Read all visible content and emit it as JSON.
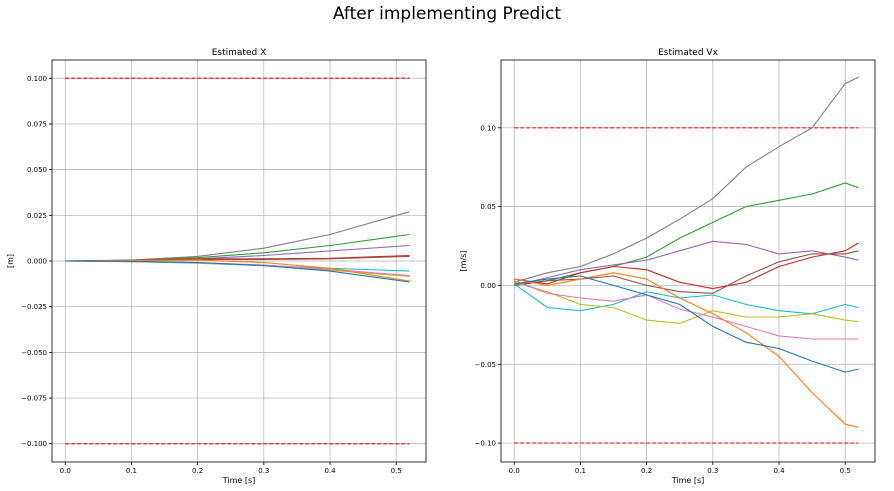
{
  "suptitle": "After implementing Predict",
  "chart_data": [
    {
      "type": "line",
      "title": "Estimated X",
      "xlabel": "Time [s]",
      "ylabel": "[m]",
      "xlim": [
        -0.02,
        0.545
      ],
      "ylim": [
        -0.11,
        0.11
      ],
      "xticks": [
        0.0,
        0.1,
        0.2,
        0.3,
        0.4,
        0.5
      ],
      "yticks": [
        -0.1,
        -0.075,
        -0.05,
        -0.025,
        0.0,
        0.025,
        0.05,
        0.075,
        0.1
      ],
      "xtick_labels": [
        "0.0",
        "0.1",
        "0.2",
        "0.3",
        "0.4",
        "0.5"
      ],
      "ytick_labels": [
        "−0.100",
        "−0.075",
        "−0.050",
        "−0.025",
        "0.000",
        "0.025",
        "0.050",
        "0.075",
        "0.100"
      ],
      "grid": true,
      "bounds": {
        "values": [
          0.1,
          -0.1
        ],
        "color": "#e41a1c",
        "style": "dashed",
        "x_range": [
          0.0,
          0.52
        ]
      },
      "series": [
        {
          "color": "#7f7f7f",
          "x": [
            0.0,
            0.1,
            0.2,
            0.3,
            0.4,
            0.52
          ],
          "y": [
            0.0,
            0.0005,
            0.0025,
            0.007,
            0.0145,
            0.027
          ]
        },
        {
          "color": "#2ca02c",
          "x": [
            0.0,
            0.1,
            0.2,
            0.3,
            0.4,
            0.52
          ],
          "y": [
            0.0,
            0.0004,
            0.0018,
            0.0045,
            0.0085,
            0.0145
          ]
        },
        {
          "color": "#9467bd",
          "x": [
            0.0,
            0.1,
            0.2,
            0.3,
            0.4,
            0.52
          ],
          "y": [
            0.0,
            0.0003,
            0.0012,
            0.003,
            0.0055,
            0.0085
          ]
        },
        {
          "color": "#d62728",
          "x": [
            0.0,
            0.1,
            0.2,
            0.3,
            0.4,
            0.52
          ],
          "y": [
            0.0,
            0.0004,
            0.0012,
            0.0012,
            0.0015,
            0.003
          ]
        },
        {
          "color": "#8c564b",
          "x": [
            0.0,
            0.1,
            0.2,
            0.3,
            0.4,
            0.52
          ],
          "y": [
            0.0,
            0.0002,
            0.0008,
            0.0008,
            0.0012,
            0.0025
          ]
        },
        {
          "color": "#17becf",
          "x": [
            0.0,
            0.1,
            0.2,
            0.3,
            0.4,
            0.52
          ],
          "y": [
            0.0,
            -0.0004,
            -0.0012,
            -0.0025,
            -0.004,
            -0.0055
          ]
        },
        {
          "color": "#bcbd22",
          "x": [
            0.0,
            0.1,
            0.2,
            0.3,
            0.4,
            0.52
          ],
          "y": [
            0.0,
            -0.0003,
            -0.001,
            -0.0025,
            -0.005,
            -0.0085
          ]
        },
        {
          "color": "#e377c2",
          "x": [
            0.0,
            0.1,
            0.2,
            0.3,
            0.4,
            0.52
          ],
          "y": [
            0.0,
            -0.0002,
            -0.0008,
            -0.0022,
            -0.0045,
            -0.008
          ]
        },
        {
          "color": "#ff7f0e",
          "x": [
            0.0,
            0.1,
            0.2,
            0.3,
            0.4,
            0.52
          ],
          "y": [
            0.0,
            0.0002,
            0.0005,
            -0.0008,
            -0.004,
            -0.011
          ]
        },
        {
          "color": "#1f77b4",
          "x": [
            0.0,
            0.1,
            0.2,
            0.3,
            0.4,
            0.52
          ],
          "y": [
            0.0,
            -0.0002,
            -0.0008,
            -0.0025,
            -0.0055,
            -0.0115
          ]
        }
      ]
    },
    {
      "type": "line",
      "title": "Estimated Vx",
      "xlabel": "Time [s]",
      "ylabel": "[m/s]",
      "xlim": [
        -0.02,
        0.545
      ],
      "ylim": [
        -0.112,
        0.143
      ],
      "xticks": [
        0.0,
        0.1,
        0.2,
        0.3,
        0.4,
        0.5
      ],
      "yticks": [
        -0.1,
        -0.05,
        0.0,
        0.05,
        0.1
      ],
      "xtick_labels": [
        "0.0",
        "0.1",
        "0.2",
        "0.3",
        "0.4",
        "0.5"
      ],
      "ytick_labels": [
        "−0.10",
        "−0.05",
        "0.00",
        "0.05",
        "0.10"
      ],
      "grid": true,
      "bounds": {
        "values": [
          0.1,
          -0.1
        ],
        "color": "#e41a1c",
        "style": "dashed",
        "x_range": [
          0.0,
          0.52
        ]
      },
      "series": [
        {
          "color": "#7f7f7f",
          "x": [
            0.0,
            0.05,
            0.1,
            0.15,
            0.2,
            0.25,
            0.3,
            0.35,
            0.4,
            0.45,
            0.5,
            0.52
          ],
          "y": [
            0.002,
            0.008,
            0.012,
            0.02,
            0.03,
            0.042,
            0.055,
            0.075,
            0.088,
            0.1,
            0.128,
            0.132
          ]
        },
        {
          "color": "#2ca02c",
          "x": [
            0.0,
            0.05,
            0.1,
            0.15,
            0.2,
            0.25,
            0.3,
            0.35,
            0.4,
            0.45,
            0.5,
            0.52
          ],
          "y": [
            0.0,
            0.003,
            0.008,
            0.012,
            0.018,
            0.03,
            0.04,
            0.05,
            0.054,
            0.058,
            0.065,
            0.062
          ]
        },
        {
          "color": "#9467bd",
          "x": [
            0.0,
            0.05,
            0.1,
            0.15,
            0.2,
            0.25,
            0.3,
            0.35,
            0.4,
            0.45,
            0.5,
            0.52
          ],
          "y": [
            0.0,
            0.005,
            0.01,
            0.013,
            0.016,
            0.022,
            0.028,
            0.026,
            0.02,
            0.022,
            0.018,
            0.016
          ]
        },
        {
          "color": "#d62728",
          "x": [
            0.0,
            0.05,
            0.1,
            0.15,
            0.2,
            0.25,
            0.3,
            0.35,
            0.4,
            0.45,
            0.5,
            0.52
          ],
          "y": [
            0.004,
            0.001,
            0.008,
            0.012,
            0.01,
            0.002,
            -0.002,
            0.002,
            0.012,
            0.018,
            0.022,
            0.027
          ]
        },
        {
          "color": "#8c564b",
          "x": [
            0.0,
            0.05,
            0.1,
            0.15,
            0.2,
            0.25,
            0.3,
            0.35,
            0.4,
            0.45,
            0.5,
            0.52
          ],
          "y": [
            0.0,
            0.003,
            0.004,
            0.006,
            0.0,
            -0.004,
            -0.005,
            0.006,
            0.015,
            0.02,
            0.02,
            0.022
          ]
        },
        {
          "color": "#17becf",
          "x": [
            0.0,
            0.05,
            0.1,
            0.15,
            0.2,
            0.25,
            0.3,
            0.35,
            0.4,
            0.45,
            0.5,
            0.52
          ],
          "y": [
            0.001,
            -0.014,
            -0.016,
            -0.012,
            -0.004,
            -0.008,
            -0.006,
            -0.012,
            -0.016,
            -0.018,
            -0.012,
            -0.014
          ]
        },
        {
          "color": "#bcbd22",
          "x": [
            0.0,
            0.05,
            0.1,
            0.15,
            0.2,
            0.25,
            0.3,
            0.35,
            0.4,
            0.45,
            0.5,
            0.52
          ],
          "y": [
            0.002,
            -0.004,
            -0.012,
            -0.014,
            -0.022,
            -0.024,
            -0.016,
            -0.02,
            -0.02,
            -0.018,
            -0.022,
            -0.023
          ]
        },
        {
          "color": "#e377c2",
          "x": [
            0.0,
            0.05,
            0.1,
            0.15,
            0.2,
            0.25,
            0.3,
            0.35,
            0.4,
            0.45,
            0.5,
            0.52
          ],
          "y": [
            0.003,
            -0.005,
            -0.008,
            -0.01,
            -0.006,
            -0.015,
            -0.02,
            -0.026,
            -0.032,
            -0.034,
            -0.034,
            -0.034
          ]
        },
        {
          "color": "#ff7f0e",
          "x": [
            0.0,
            0.05,
            0.1,
            0.15,
            0.2,
            0.25,
            0.3,
            0.35,
            0.4,
            0.45,
            0.5,
            0.52
          ],
          "y": [
            0.004,
            0.0,
            0.004,
            0.008,
            0.004,
            -0.008,
            -0.018,
            -0.03,
            -0.045,
            -0.068,
            -0.088,
            -0.09
          ]
        },
        {
          "color": "#1f77b4",
          "x": [
            0.0,
            0.05,
            0.1,
            0.15,
            0.2,
            0.25,
            0.3,
            0.35,
            0.4,
            0.45,
            0.5,
            0.52
          ],
          "y": [
            0.001,
            0.004,
            0.006,
            0.0,
            -0.006,
            -0.012,
            -0.026,
            -0.036,
            -0.04,
            -0.048,
            -0.055,
            -0.053
          ]
        }
      ]
    }
  ]
}
